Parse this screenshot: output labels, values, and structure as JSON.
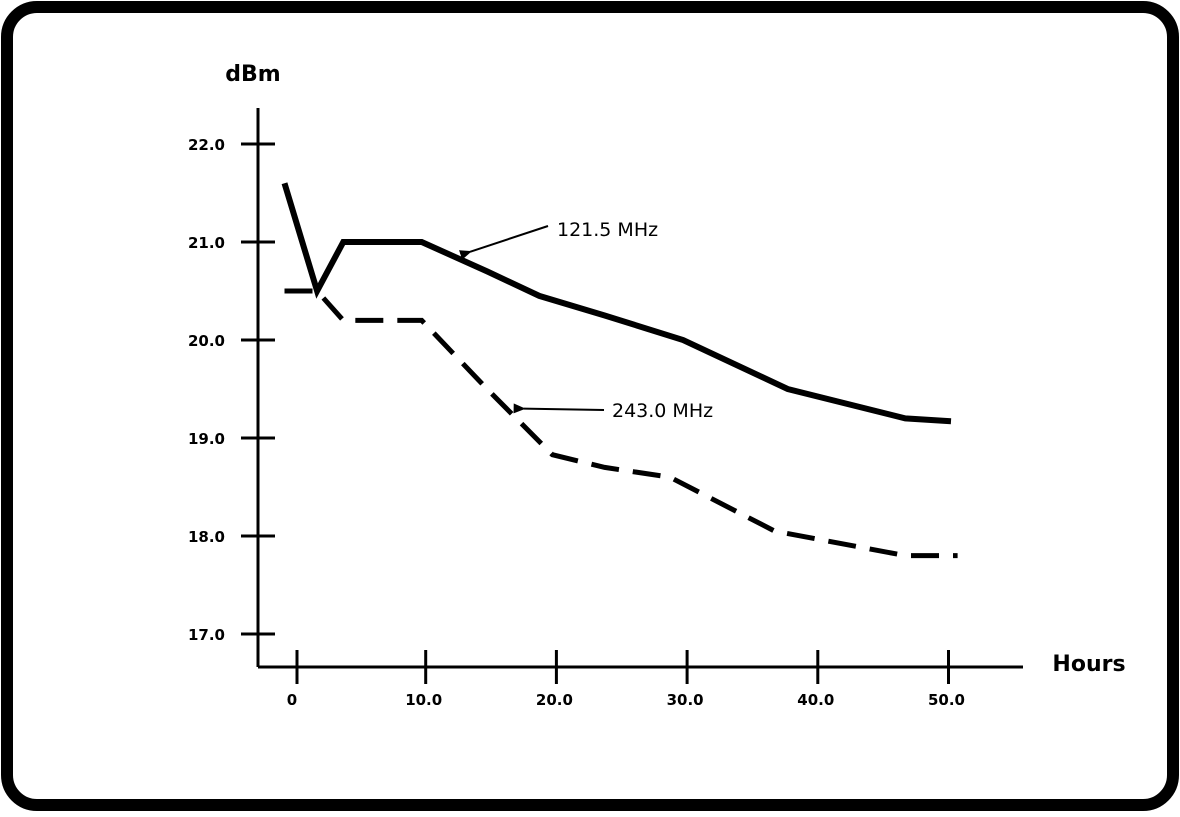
{
  "chart_data": {
    "type": "line",
    "title": "",
    "xlabel": "Hours",
    "ylabel": "dBm",
    "xlim": [
      0,
      50
    ],
    "ylim": [
      17.0,
      22.0
    ],
    "x_ticks": [
      0,
      10,
      20,
      30,
      40,
      50
    ],
    "x_tick_labels": [
      "0",
      "10.0",
      "20.0",
      "30.0",
      "40.0",
      "50.0"
    ],
    "y_ticks": [
      17,
      18,
      19,
      20,
      21,
      22
    ],
    "y_tick_labels": [
      "17.0",
      "18.0",
      "19.0",
      "20.0",
      "21.0",
      "22.0"
    ],
    "grid": false,
    "legend": "none",
    "series": [
      {
        "name": "121.5 MHz",
        "style": "solid",
        "color": "#000000",
        "points": [
          [
            -0.5,
            21.6
          ],
          [
            2,
            20.5
          ],
          [
            4,
            21.0
          ],
          [
            10,
            21.0
          ],
          [
            15,
            20.7
          ],
          [
            19,
            20.45
          ],
          [
            24,
            20.25
          ],
          [
            30,
            20.0
          ],
          [
            38,
            19.5
          ],
          [
            47,
            19.2
          ],
          [
            50.5,
            19.17
          ]
        ]
      },
      {
        "name": "243.0 MHz",
        "style": "dashed",
        "color": "#000000",
        "points": [
          [
            -0.5,
            20.5
          ],
          [
            2,
            20.5
          ],
          [
            4,
            20.2
          ],
          [
            10,
            20.2
          ],
          [
            15,
            19.5
          ],
          [
            20,
            18.83
          ],
          [
            24,
            18.7
          ],
          [
            29,
            18.6
          ],
          [
            37,
            18.05
          ],
          [
            47,
            17.8
          ],
          [
            51,
            17.8
          ]
        ]
      }
    ],
    "annotations": [
      {
        "text": "121.5 MHz",
        "series": 0,
        "arrow_to": [
          13.7,
          20.9
        ]
      },
      {
        "text": "243.0 MHz",
        "series": 1,
        "arrow_to": [
          17.8,
          19.3
        ]
      }
    ]
  }
}
